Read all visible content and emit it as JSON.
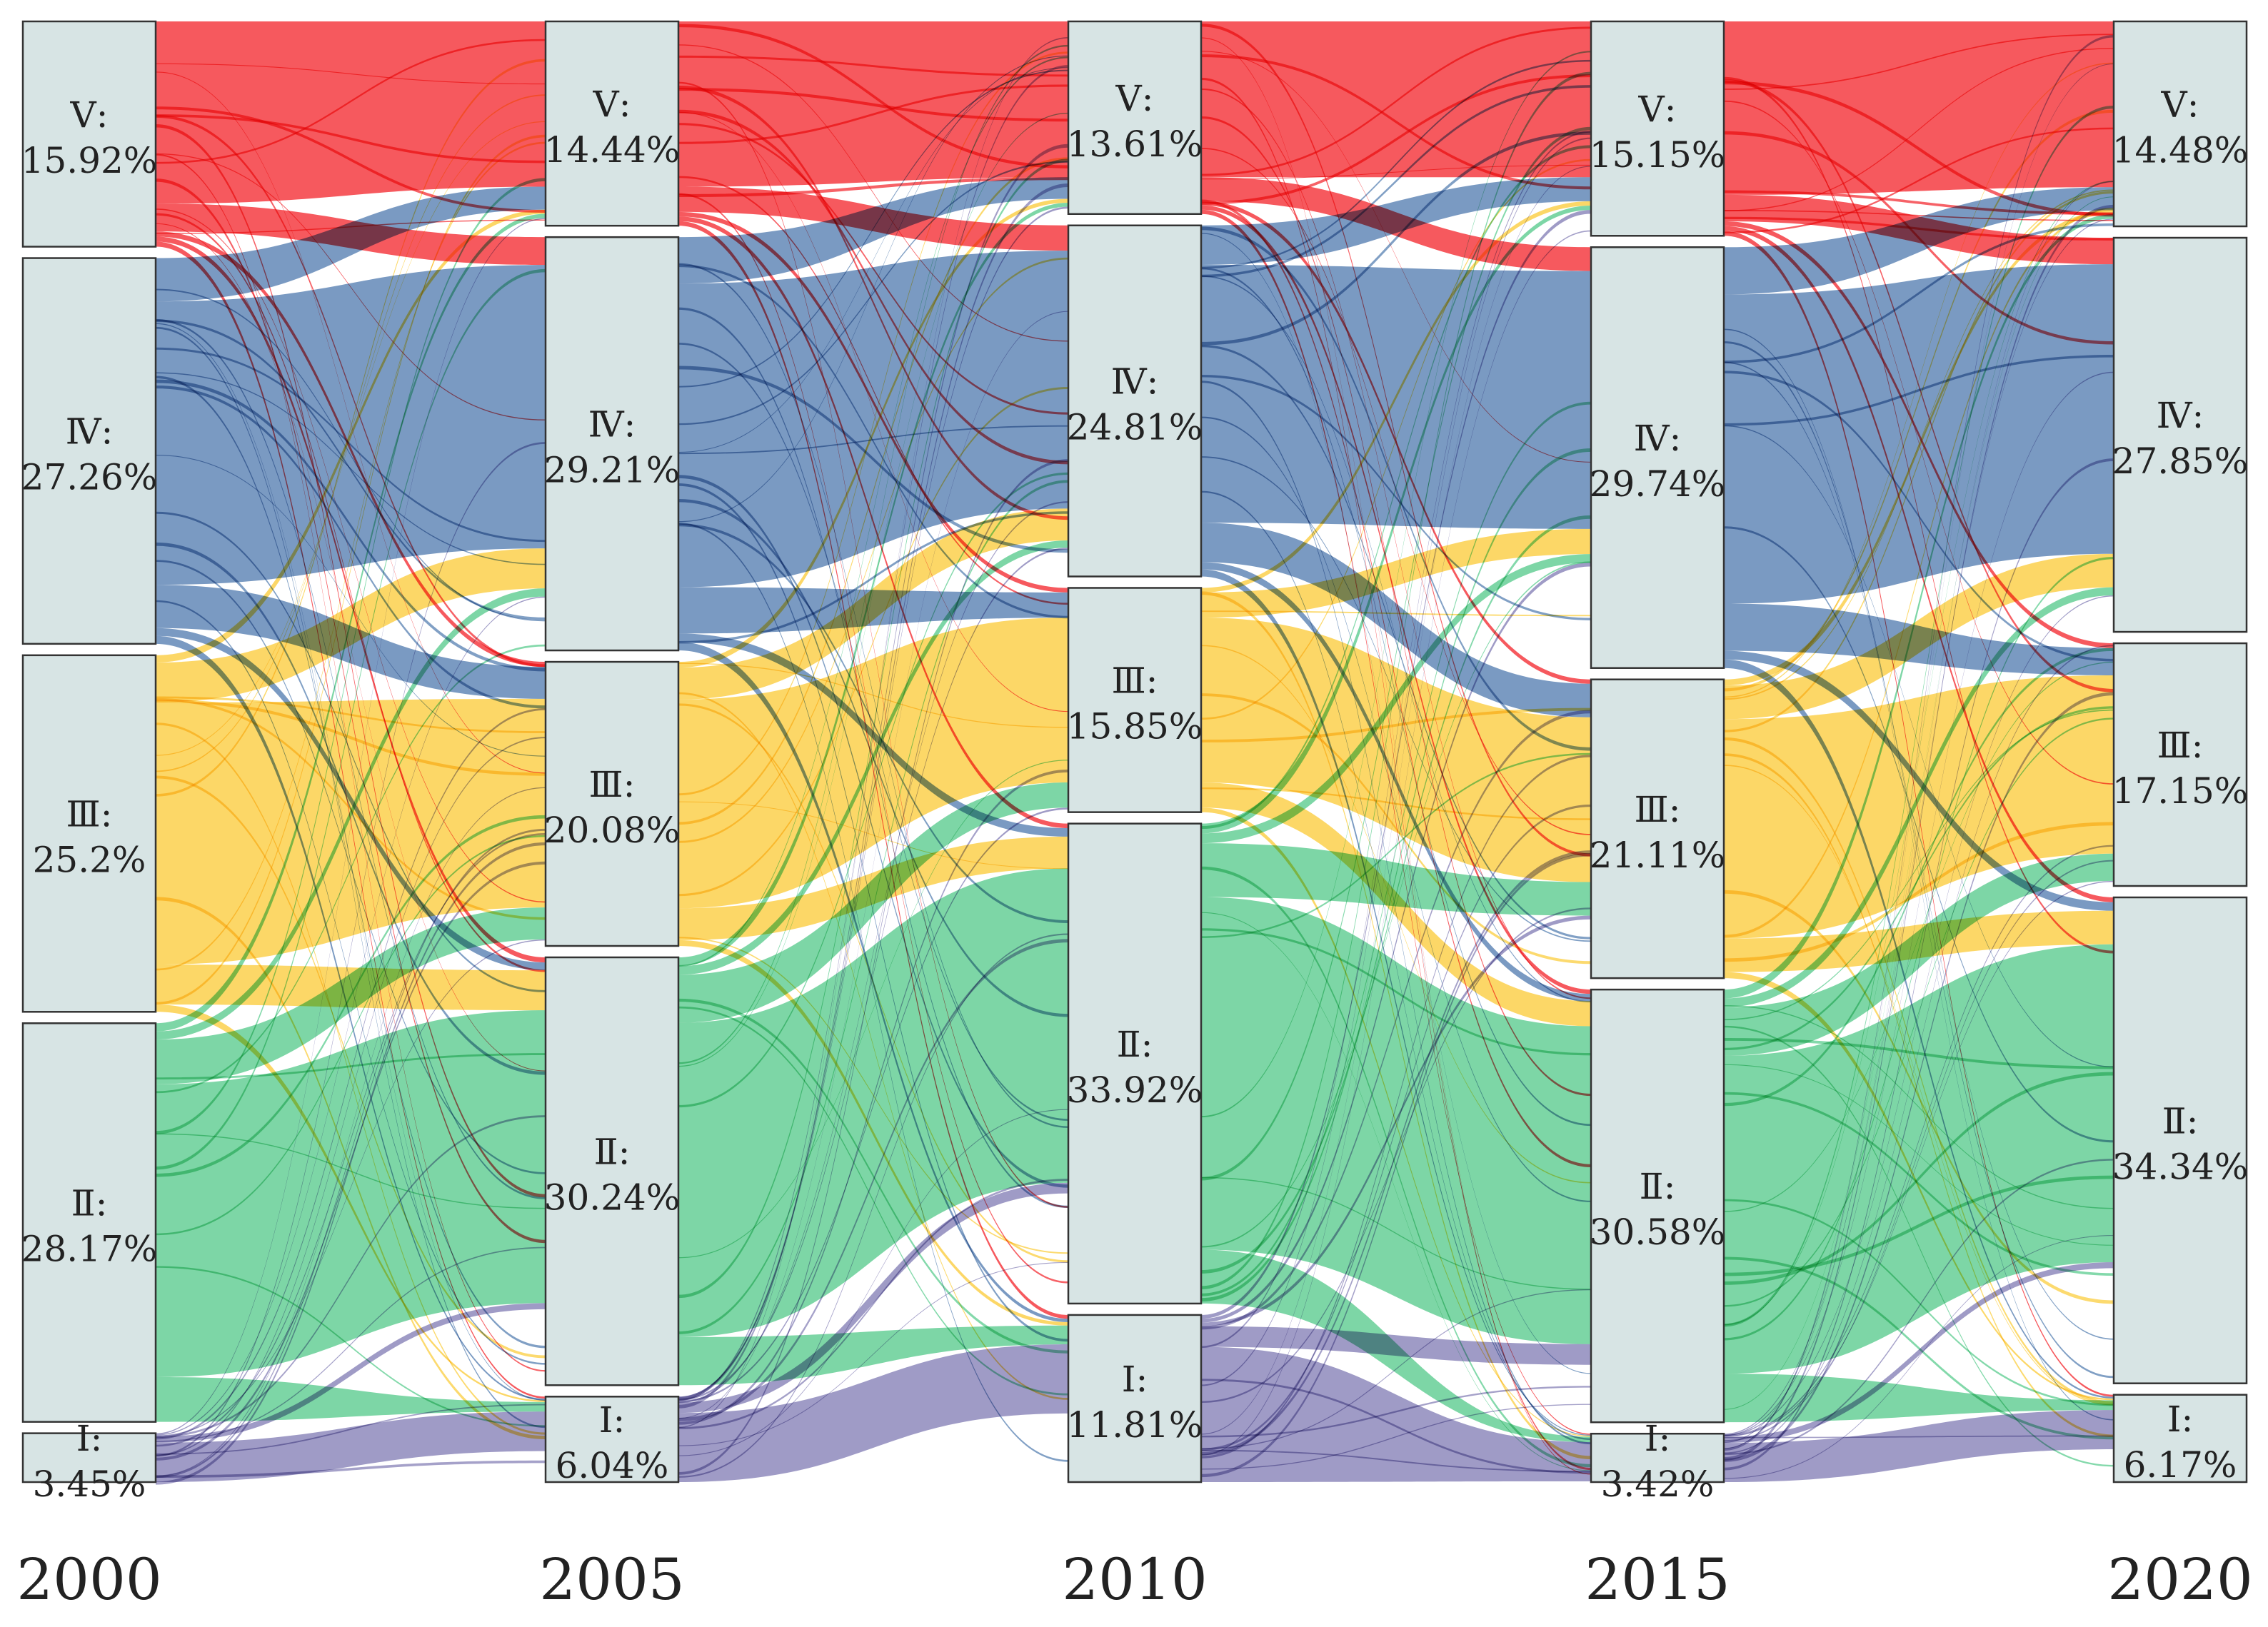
{
  "chart_data": {
    "type": "sankey",
    "years": [
      "2000",
      "2005",
      "2010",
      "2015",
      "2020"
    ],
    "classes": [
      "V",
      "IV",
      "III",
      "II",
      "I"
    ],
    "class_labels": {
      "V": "Ⅴ:",
      "IV": "Ⅳ:",
      "III": "Ⅲ:",
      "II": "Ⅱ:",
      "I": "Ⅰ:"
    },
    "colors": {
      "V": "#f5474c",
      "IV": "#6b8fbb",
      "III": "#fcd356",
      "II": "#6fd29c",
      "I": "#9590c0"
    },
    "nodes": [
      {
        "year": "2000",
        "values": {
          "V": "15.92%",
          "IV": "27.26%",
          "III": "25.2%",
          "II": "28.17%",
          "I": "3.45%"
        }
      },
      {
        "year": "2005",
        "values": {
          "V": "14.44%",
          "IV": "29.21%",
          "III": "20.08%",
          "II": "30.24%",
          "I": "6.04%"
        }
      },
      {
        "year": "2010",
        "values": {
          "V": "13.61%",
          "IV": "24.81%",
          "III": "15.85%",
          "II": "33.92%",
          "I": "11.81%"
        }
      },
      {
        "year": "2015",
        "values": {
          "V": "15.15%",
          "IV": "29.74%",
          "III": "21.11%",
          "II": "30.58%",
          "I": "3.42%"
        }
      },
      {
        "year": "2020",
        "values": {
          "V": "14.48%",
          "IV": "27.85%",
          "III": "17.15%",
          "II": "34.34%",
          "I": "6.17%"
        }
      }
    ]
  }
}
